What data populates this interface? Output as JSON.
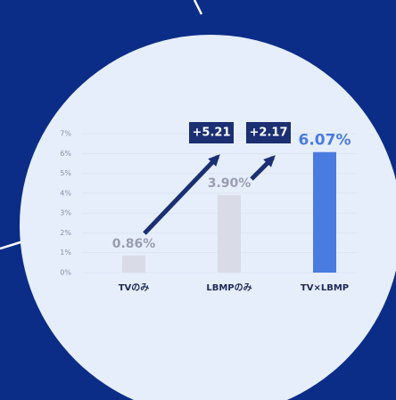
{
  "chart_data": {
    "type": "bar",
    "categories": [
      "TVのみ",
      "LBMPのみ",
      "TV×LBMP"
    ],
    "values": [
      0.86,
      3.9,
      6.07
    ],
    "value_labels": [
      "0.86%",
      "3.90%",
      "6.07%"
    ],
    "colors": [
      "#d9dbe7",
      "#d9dbe7",
      "#4a7be0"
    ],
    "label_colors": [
      "#9a9daf",
      "#9a9daf",
      "#4a7be0"
    ],
    "ylim": [
      0,
      7
    ],
    "yticks": [
      {
        "value": 0,
        "label": "0%"
      },
      {
        "value": 1,
        "label": "1%"
      },
      {
        "value": 2,
        "label": "2%"
      },
      {
        "value": 3,
        "label": "3%"
      },
      {
        "value": 4,
        "label": "4%"
      },
      {
        "value": 5,
        "label": "5%"
      },
      {
        "value": 6,
        "label": "6%"
      },
      {
        "value": 7,
        "label": "7%"
      }
    ],
    "grid": true,
    "annotations": [
      "+5.21",
      "+2.17"
    ]
  }
}
